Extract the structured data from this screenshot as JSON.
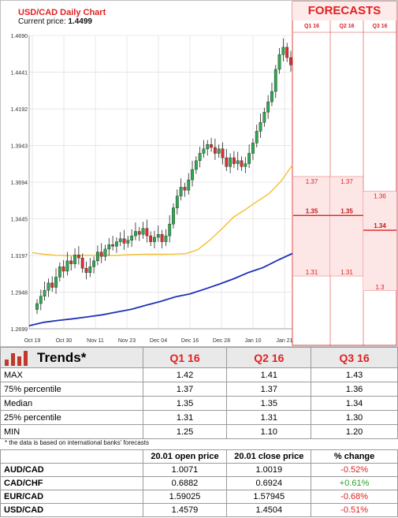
{
  "chart_data": {
    "type": "candlestick",
    "title": "USD/CAD Daily Chart",
    "current_price_label": "Current price:",
    "current_price": "1.4499",
    "ylim": [
      1.2699,
      1.469
    ],
    "y_ticks": [
      "1.4690",
      "1.4441",
      "1.4192",
      "1.3943",
      "1.3694",
      "1.3445",
      "1.3197",
      "1.2948",
      "1.2699"
    ],
    "x_ticks": [
      "Oct 19",
      "Oct 30",
      "Nov 11",
      "Nov 23",
      "Dec 04",
      "Dec 16",
      "Dec 28",
      "Jan 10",
      "Jan 21"
    ],
    "series": [
      {
        "type": "candles",
        "values": [
          1.287,
          1.292,
          1.296,
          1.301,
          1.298,
          1.305,
          1.312,
          1.309,
          1.316,
          1.314,
          1.32,
          1.318,
          1.311,
          1.308,
          1.312,
          1.316,
          1.322,
          1.319,
          1.324,
          1.327,
          1.326,
          1.329,
          1.331,
          1.328,
          1.33,
          1.333,
          1.336,
          1.334,
          1.338,
          1.333,
          1.329,
          1.332,
          1.334,
          1.329,
          1.333,
          1.341,
          1.352,
          1.36,
          1.366,
          1.364,
          1.371,
          1.378,
          1.384,
          1.389,
          1.392,
          1.395,
          1.393,
          1.389,
          1.392,
          1.386,
          1.38,
          1.386,
          1.382,
          1.384,
          1.38,
          1.382,
          1.389,
          1.396,
          1.404,
          1.41,
          1.417,
          1.424,
          1.431,
          1.446,
          1.456,
          1.461,
          1.454,
          1.449
        ]
      },
      {
        "type": "line",
        "color": "#f2c12e",
        "values": [
          1.3215,
          1.3205,
          1.3198,
          1.3195,
          1.3197,
          1.3198,
          1.3197,
          1.3197,
          1.3201,
          1.3204,
          1.3205,
          1.3205,
          1.3206,
          1.3209,
          1.3236,
          1.33,
          1.3375,
          1.3456,
          1.3507,
          1.3563,
          1.3614,
          1.3697,
          1.381
        ]
      },
      {
        "type": "line",
        "color": "#1f30b8",
        "values": [
          1.272,
          1.2743,
          1.2756,
          1.2767,
          1.278,
          1.2794,
          1.2813,
          1.2832,
          1.2859,
          1.2885,
          1.2916,
          1.2936,
          1.2968,
          1.3002,
          1.3039,
          1.3081,
          1.3115,
          1.3164,
          1.321
        ]
      }
    ]
  },
  "forecasts": {
    "title": "FORECASTS",
    "columns": [
      {
        "label": "Q1 16",
        "max": "",
        "p75": "1.37",
        "median": "1.35",
        "p25": "1.31"
      },
      {
        "label": "Q2 16",
        "max": "",
        "p75": "1.37",
        "median": "1.35",
        "p25": "1.31"
      },
      {
        "label": "Q3 16",
        "max": "",
        "p75": "1.36",
        "median": "1.34",
        "p25": "1.3"
      }
    ]
  },
  "trends": {
    "title": "Trends*",
    "columns": [
      "Q1 16",
      "Q2 16",
      "Q3 16"
    ],
    "rows": [
      {
        "label": "MAX",
        "values": [
          "1.42",
          "1.41",
          "1.43"
        ]
      },
      {
        "label": "75% percentile",
        "values": [
          "1.37",
          "1.37",
          "1.36"
        ]
      },
      {
        "label": "Median",
        "values": [
          "1.35",
          "1.35",
          "1.34"
        ]
      },
      {
        "label": "25% percentile",
        "values": [
          "1.31",
          "1.31",
          "1.30"
        ]
      },
      {
        "label": "MIN",
        "values": [
          "1.25",
          "1.10",
          "1.20"
        ]
      }
    ],
    "footnote": "* the data is based on international banks' forecasts",
    "colors": {
      "accent": "#e02020",
      "bars": "#c0392b"
    }
  },
  "fx": {
    "headers": [
      "",
      "20.01 open price",
      "20.01 close price",
      "% change"
    ],
    "rows": [
      {
        "pair": "AUD/CAD",
        "open": "1.0071",
        "close": "1.0019",
        "change": "-0.52%",
        "direction": "down"
      },
      {
        "pair": "CAD/CHF",
        "open": "0.6882",
        "close": "0.6924",
        "change": "+0.61%",
        "direction": "up"
      },
      {
        "pair": "EUR/CAD",
        "open": "1.59025",
        "close": "1.57945",
        "change": "-0.68%",
        "direction": "down"
      },
      {
        "pair": "USD/CAD",
        "open": "1.4579",
        "close": "1.4504",
        "change": "-0.51%",
        "direction": "down"
      }
    ],
    "colors": {
      "negative": "#e02020",
      "positive": "#2aa02a"
    }
  }
}
